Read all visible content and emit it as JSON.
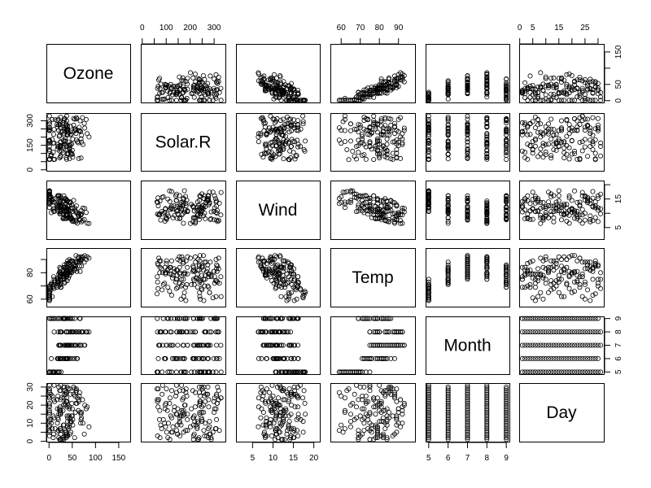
{
  "chart_data": {
    "type": "scatter",
    "subtype": "scatterplot-matrix",
    "title": "",
    "variables": [
      "Ozone",
      "Solar.R",
      "Wind",
      "Temp",
      "Month",
      "Day"
    ],
    "ranges": {
      "Ozone": [
        1,
        168
      ],
      "Solar.R": [
        7,
        334
      ],
      "Wind": [
        1.7,
        20.7
      ],
      "Temp": [
        56,
        97
      ],
      "Month": [
        5,
        9
      ],
      "Day": [
        1,
        31
      ]
    },
    "axes": {
      "top": [
        {
          "variable": "Solar.R",
          "ticks": [
            0,
            50,
            100,
            150,
            200,
            250,
            300
          ],
          "labels": [
            "0",
            "100",
            "200",
            "300"
          ]
        },
        {
          "variable": "Temp",
          "ticks": [
            60,
            70,
            80,
            90
          ],
          "labels": [
            "60",
            "70",
            "80",
            "90"
          ]
        },
        {
          "variable": "Day",
          "ticks": [
            0,
            5,
            10,
            15,
            20,
            25,
            30
          ],
          "labels": [
            "0",
            "5",
            "15",
            "25"
          ]
        }
      ],
      "bottom": [
        {
          "variable": "Ozone",
          "ticks": [
            0,
            50,
            100,
            150
          ],
          "labels": [
            "0",
            "50",
            "100",
            "150"
          ]
        },
        {
          "variable": "Wind",
          "ticks": [
            5,
            10,
            15,
            20
          ],
          "labels": [
            "5",
            "10",
            "15",
            "20"
          ]
        },
        {
          "variable": "Month",
          "ticks": [
            5,
            6,
            7,
            8,
            9
          ],
          "labels": [
            "5",
            "6",
            "7",
            "8",
            "9"
          ]
        }
      ],
      "left": [
        {
          "variable": "Solar.R",
          "ticks": [
            0,
            50,
            100,
            150,
            200,
            250,
            300
          ],
          "labels": [
            "0",
            "150",
            "300"
          ]
        },
        {
          "variable": "Temp",
          "ticks": [
            60,
            70,
            80,
            90
          ],
          "labels": [
            "60",
            "80"
          ]
        },
        {
          "variable": "Day",
          "ticks": [
            0,
            5,
            10,
            15,
            20,
            25,
            30
          ],
          "labels": [
            "0",
            "10",
            "20",
            "30"
          ]
        }
      ],
      "right": [
        {
          "variable": "Ozone",
          "ticks": [
            0,
            50,
            100,
            150
          ],
          "labels": [
            "0",
            "50",
            "150"
          ]
        },
        {
          "variable": "Wind",
          "ticks": [
            5,
            10,
            15,
            20
          ],
          "labels": [
            "5",
            "15"
          ]
        },
        {
          "variable": "Month",
          "ticks": [
            5,
            6,
            7,
            8,
            9
          ],
          "labels": [
            "5",
            "6",
            "7",
            "8",
            "9"
          ]
        }
      ]
    },
    "marker": "open-circle",
    "grid": false,
    "legend": null,
    "n_points": 153
  },
  "diagonal_labels": [
    "Ozone",
    "Solar.R",
    "Wind",
    "Temp",
    "Month",
    "Day"
  ],
  "colors": {
    "background": "#ffffff",
    "points": "#000000",
    "frame": "#000000"
  }
}
